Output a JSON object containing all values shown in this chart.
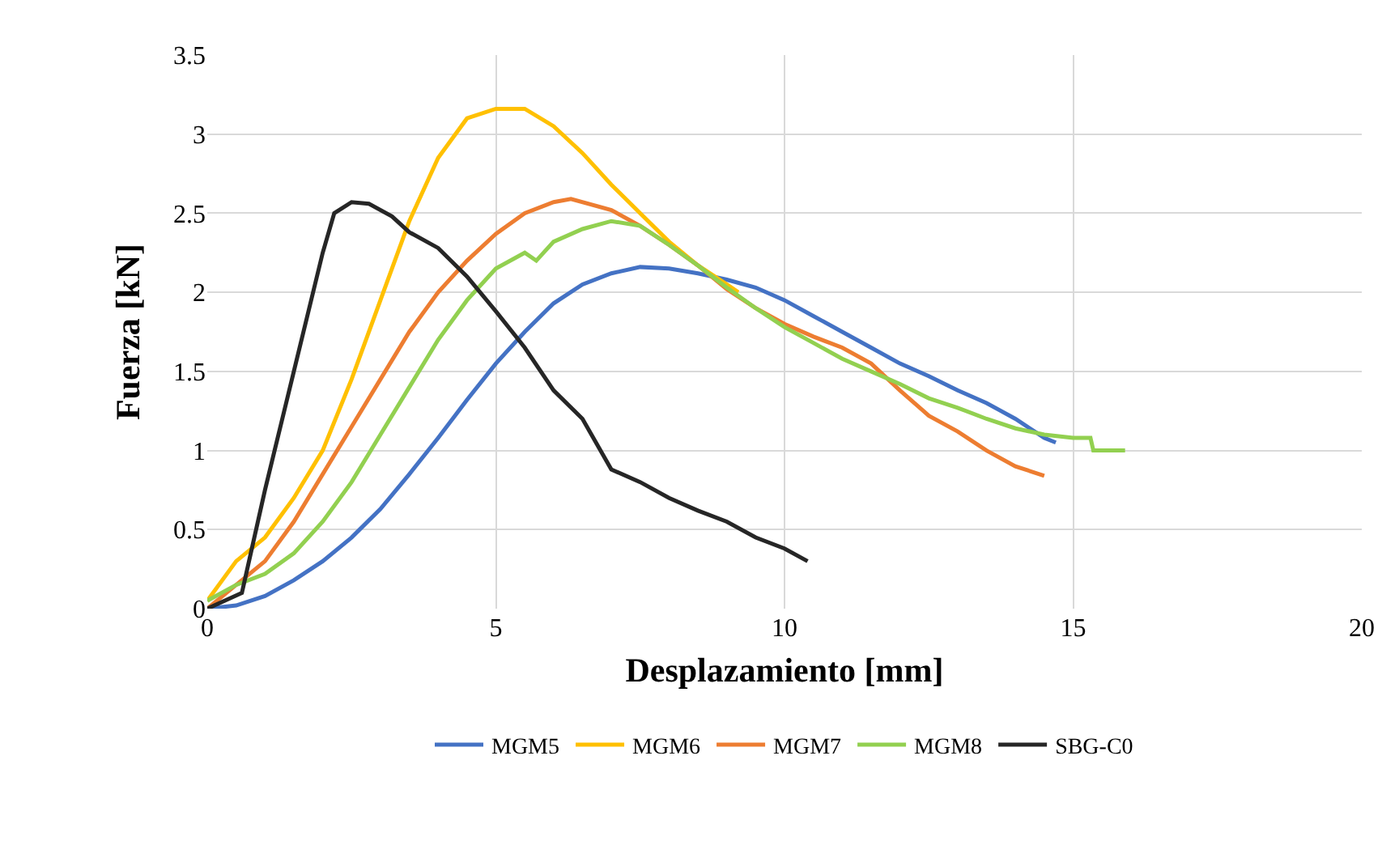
{
  "chart_data": {
    "type": "line",
    "xlabel": "Desplazamiento [mm]",
    "ylabel": "Fuerza [kN]",
    "xlim": [
      0,
      20
    ],
    "xticks": [
      0,
      5,
      10,
      15,
      20
    ],
    "ylim": [
      0,
      3.5
    ],
    "yticks": [
      0,
      0.5,
      1,
      1.5,
      2,
      2.5,
      3,
      3.5
    ],
    "grid": true,
    "legend": "bottom",
    "marker": "none",
    "line_style": "solid",
    "series": [
      {
        "name": "MGM5",
        "color": "#4472c4",
        "x": [
          0,
          0.5,
          1,
          1.5,
          2,
          2.5,
          3,
          3.5,
          4,
          4.5,
          5,
          5.5,
          6,
          6.5,
          7,
          7.5,
          8,
          8.5,
          9,
          9.5,
          10,
          10.5,
          11,
          11.5,
          12,
          12.5,
          13,
          13.5,
          14,
          14.5,
          14.7
        ],
        "values": [
          0,
          0.02,
          0.08,
          0.18,
          0.3,
          0.45,
          0.63,
          0.85,
          1.08,
          1.32,
          1.55,
          1.75,
          1.93,
          2.05,
          2.12,
          2.16,
          2.15,
          2.12,
          2.08,
          2.03,
          1.95,
          1.85,
          1.75,
          1.65,
          1.55,
          1.47,
          1.38,
          1.3,
          1.2,
          1.08,
          1.05
        ]
      },
      {
        "name": "MGM6",
        "color": "#ffc000",
        "x": [
          0,
          0.5,
          1,
          1.5,
          2,
          2.5,
          3,
          3.5,
          4,
          4.5,
          5,
          5.5,
          6,
          6.5,
          7,
          7.5,
          8,
          8.5,
          9,
          9.2
        ],
        "values": [
          0.05,
          0.3,
          0.45,
          0.7,
          1.0,
          1.45,
          1.95,
          2.45,
          2.85,
          3.1,
          3.16,
          3.16,
          3.05,
          2.88,
          2.68,
          2.5,
          2.32,
          2.17,
          2.05,
          2.0
        ]
      },
      {
        "name": "MGM7",
        "color": "#ed7d31",
        "x": [
          0,
          0.5,
          1,
          1.5,
          2,
          2.5,
          3,
          3.5,
          4,
          4.5,
          5,
          5.5,
          6,
          6.3,
          7,
          7.5,
          8,
          8.5,
          9,
          9.5,
          10,
          10.5,
          11,
          11.5,
          12,
          12.5,
          13,
          13.5,
          14,
          14.5
        ],
        "values": [
          0,
          0.15,
          0.3,
          0.55,
          0.85,
          1.15,
          1.45,
          1.75,
          2.0,
          2.2,
          2.37,
          2.5,
          2.57,
          2.59,
          2.52,
          2.42,
          2.3,
          2.17,
          2.02,
          1.9,
          1.8,
          1.72,
          1.65,
          1.55,
          1.38,
          1.22,
          1.12,
          1.0,
          0.9,
          0.84
        ]
      },
      {
        "name": "MGM8",
        "color": "#92d050",
        "x": [
          0,
          0.5,
          1,
          1.5,
          2,
          2.5,
          3,
          3.5,
          4,
          4.5,
          5,
          5.5,
          5.7,
          6,
          6.5,
          7,
          7.5,
          8,
          8.5,
          9,
          9.5,
          10,
          10.5,
          11,
          11.5,
          12,
          12.5,
          13,
          13.5,
          14,
          14.5,
          15,
          15.3,
          15.35,
          15.9
        ],
        "values": [
          0.05,
          0.15,
          0.22,
          0.35,
          0.55,
          0.8,
          1.1,
          1.4,
          1.7,
          1.95,
          2.15,
          2.25,
          2.2,
          2.32,
          2.4,
          2.45,
          2.42,
          2.3,
          2.17,
          2.03,
          1.9,
          1.78,
          1.68,
          1.58,
          1.5,
          1.42,
          1.33,
          1.27,
          1.2,
          1.14,
          1.1,
          1.08,
          1.08,
          1.0,
          1.0
        ]
      },
      {
        "name": "SBG-C0",
        "color": "#262626",
        "x": [
          0,
          0.3,
          0.6,
          1,
          1.5,
          2,
          2.2,
          2.5,
          2.8,
          3.2,
          3.5,
          4,
          4.5,
          5,
          5.5,
          6,
          6.5,
          7,
          7.5,
          8,
          8.5,
          9,
          9.5,
          10,
          10.4
        ],
        "values": [
          0,
          0.05,
          0.1,
          0.75,
          1.5,
          2.25,
          2.5,
          2.57,
          2.56,
          2.48,
          2.38,
          2.28,
          2.1,
          1.88,
          1.65,
          1.38,
          1.2,
          0.88,
          0.8,
          0.7,
          0.62,
          0.55,
          0.45,
          0.38,
          0.3
        ]
      }
    ]
  }
}
